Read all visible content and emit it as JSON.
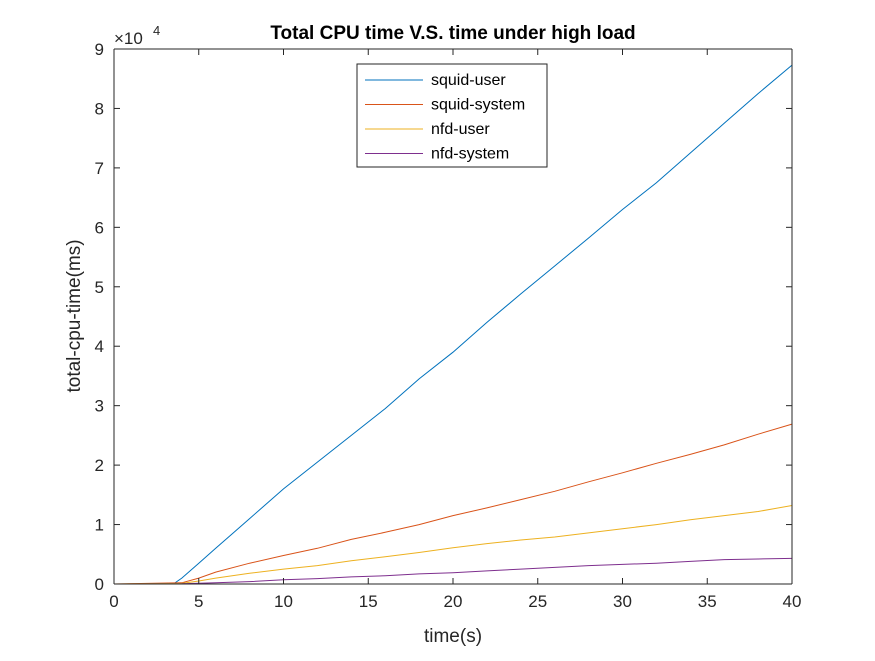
{
  "chart_data": {
    "type": "line",
    "title": "Total CPU time V.S. time under high load",
    "xlabel": "time(s)",
    "ylabel": "total-cpu-time(ms)",
    "xlim": [
      0,
      40
    ],
    "ylim": [
      0,
      90000
    ],
    "x_ticks": [
      0,
      5,
      10,
      15,
      20,
      25,
      30,
      35,
      40
    ],
    "y_ticks": [
      0,
      1,
      2,
      3,
      4,
      5,
      6,
      7,
      8,
      9
    ],
    "y_tick_labels": [
      "0",
      "1",
      "2",
      "3",
      "4",
      "5",
      "6",
      "7",
      "8",
      "9"
    ],
    "y_exponent_base": "×10",
    "y_exponent_power": "4",
    "grid": false,
    "legend_position": "top-center",
    "series": [
      {
        "name": "squid-user",
        "color": "#0072BD",
        "x": [
          0,
          3.5,
          4,
          5,
          6,
          7,
          8,
          10,
          12,
          14,
          16,
          18,
          20,
          22,
          24,
          26,
          28,
          30,
          32,
          34,
          36,
          38,
          40
        ],
        "y": [
          0,
          0,
          1000,
          3500,
          6000,
          8500,
          11000,
          16000,
          20500,
          25000,
          29500,
          34500,
          39000,
          44000,
          48800,
          53500,
          58200,
          63000,
          67500,
          72500,
          77500,
          82500,
          87300
        ]
      },
      {
        "name": "squid-system",
        "color": "#D95319",
        "x": [
          0,
          4,
          5,
          6,
          8,
          10,
          12,
          14,
          16,
          18,
          20,
          22,
          24,
          26,
          28,
          30,
          32,
          34,
          36,
          38,
          40
        ],
        "y": [
          0,
          200,
          1000,
          2000,
          3500,
          4800,
          6000,
          7500,
          8700,
          10000,
          11500,
          12800,
          14200,
          15600,
          17200,
          18700,
          20300,
          21800,
          23400,
          25200,
          26900
        ]
      },
      {
        "name": "nfd-user",
        "color": "#EDB120",
        "x": [
          0,
          4,
          5,
          6,
          8,
          10,
          12,
          14,
          16,
          18,
          20,
          22,
          24,
          26,
          28,
          30,
          32,
          34,
          36,
          38,
          40
        ],
        "y": [
          0,
          100,
          500,
          1000,
          1800,
          2500,
          3100,
          3900,
          4600,
          5300,
          6100,
          6800,
          7400,
          7900,
          8600,
          9300,
          10000,
          10800,
          11500,
          12200,
          13200
        ]
      },
      {
        "name": "nfd-system",
        "color": "#7E2F8E",
        "x": [
          0,
          4,
          6,
          8,
          10,
          12,
          14,
          16,
          18,
          20,
          22,
          24,
          26,
          28,
          30,
          32,
          34,
          36,
          38,
          40
        ],
        "y": [
          0,
          50,
          200,
          400,
          700,
          900,
          1200,
          1400,
          1700,
          1900,
          2200,
          2500,
          2800,
          3100,
          3300,
          3500,
          3800,
          4100,
          4200,
          4300
        ]
      }
    ]
  }
}
